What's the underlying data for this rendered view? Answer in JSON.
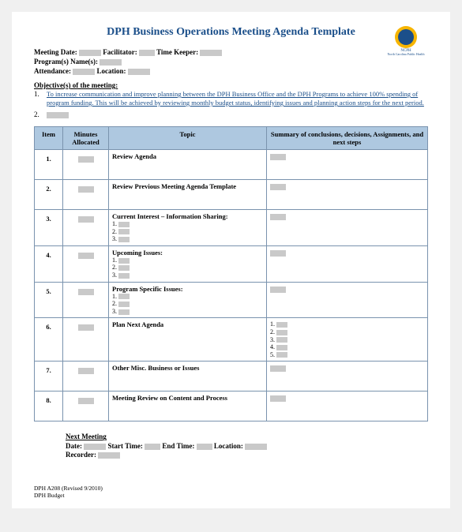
{
  "title": "DPH Business Operations Meeting Agenda Template",
  "logo": {
    "name": "NCPH",
    "subtitle": "North Carolina Public Health",
    "circle_outer": "#f7b500",
    "circle_inner": "#1b4f8a"
  },
  "meta": {
    "meeting_date_label": "Meeting Date:",
    "facilitator_label": "Facilitator:",
    "time_keeper_label": "Time Keeper:",
    "programs_label": "Program(s) Name(s):",
    "attendance_label": "Attendance:",
    "location_label": "Location:"
  },
  "objectives": {
    "heading": "Objective(s) of the meeting:",
    "item1_num": "1.",
    "item1_text": "To increase communication and improve planning between the DPH Business Office and the DPH Programs to achieve 100% spending of program funding. This will be achieved by reviewing monthly budget status, identifying issues and planning action steps for the next period.",
    "item2_num": "2."
  },
  "table": {
    "headers": {
      "item": "Item",
      "minutes": "Minutes Allocated",
      "topic": "Topic",
      "summary": "Summary of conclusions, decisions, Assignments, and next steps"
    },
    "rows": [
      {
        "n": "1.",
        "topic": "Review Agenda",
        "sub": [],
        "sum_sub": []
      },
      {
        "n": "2.",
        "topic": "Review Previous Meeting Agenda Template",
        "sub": [],
        "sum_sub": []
      },
      {
        "n": "3.",
        "topic": "Current Interest – Information Sharing:",
        "sub": [
          "1.",
          "2.",
          "3."
        ],
        "sum_sub": []
      },
      {
        "n": "4.",
        "topic": "Upcoming Issues:",
        "sub": [
          "1.",
          "2.",
          "3."
        ],
        "sum_sub": []
      },
      {
        "n": "5.",
        "topic": "Program Specific Issues:",
        "sub": [
          "1.",
          "2.",
          "3."
        ],
        "sum_sub": []
      },
      {
        "n": "6.",
        "topic": "Plan Next Agenda",
        "sub": [],
        "sum_sub": [
          "1.",
          "2.",
          "3.",
          "4.",
          "5."
        ]
      },
      {
        "n": "7.",
        "topic": "Other Misc. Business or Issues",
        "sub": [],
        "sum_sub": []
      },
      {
        "n": "8.",
        "topic": "Meeting Review on Content and Process",
        "sub": [],
        "sum_sub": []
      }
    ]
  },
  "next_meeting": {
    "heading": "Next Meeting",
    "date_label": "Date:",
    "start_label": "Start Time:",
    "end_label": "End Time:",
    "location_label": "Location:",
    "recorder_label": "Recorder:"
  },
  "footer": {
    "line1": "DPH A208 (Revised 9/2010)",
    "line2": "DPH Budget"
  },
  "colors": {
    "title_color": "#1b4f8a",
    "header_bg": "#aec8e0",
    "border": "#7a93ae",
    "blank_fill": "#c9c9c9"
  }
}
